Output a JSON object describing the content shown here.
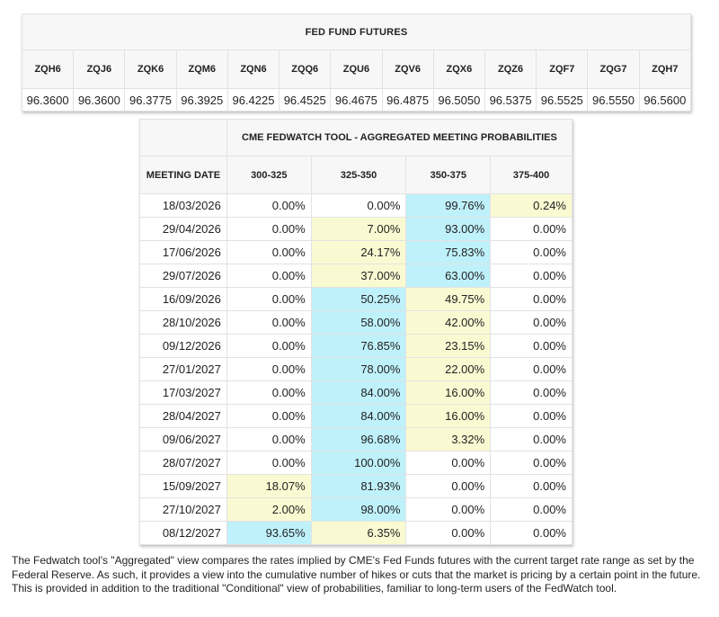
{
  "futures": {
    "title": "FED FUND FUTURES",
    "contracts": [
      "ZQH6",
      "ZQJ6",
      "ZQK6",
      "ZQM6",
      "ZQN6",
      "ZQQ6",
      "ZQU6",
      "ZQV6",
      "ZQX6",
      "ZQZ6",
      "ZQF7",
      "ZQG7",
      "ZQH7"
    ],
    "prices": [
      "96.3600",
      "96.3600",
      "96.3775",
      "96.3925",
      "96.4225",
      "96.4525",
      "96.4675",
      "96.4875",
      "96.5050",
      "96.5375",
      "96.5525",
      "96.5550",
      "96.5600"
    ]
  },
  "fedwatch": {
    "title": "CME FEDWATCH TOOL - AGGREGATED MEETING PROBABILITIES",
    "date_header": "MEETING DATE",
    "ranges": [
      "300-325",
      "325-350",
      "350-375",
      "375-400"
    ],
    "colors": {
      "highest": "#bff1fb",
      "second": "#fafad2"
    },
    "rows": [
      {
        "date": "18/03/2026",
        "values": [
          "0.00%",
          "0.00%",
          "99.76%",
          "0.24%"
        ],
        "shade": [
          "",
          "",
          "hi",
          "mid"
        ]
      },
      {
        "date": "29/04/2026",
        "values": [
          "0.00%",
          "7.00%",
          "93.00%",
          "0.00%"
        ],
        "shade": [
          "",
          "mid",
          "hi",
          ""
        ]
      },
      {
        "date": "17/06/2026",
        "values": [
          "0.00%",
          "24.17%",
          "75.83%",
          "0.00%"
        ],
        "shade": [
          "",
          "mid",
          "hi",
          ""
        ]
      },
      {
        "date": "29/07/2026",
        "values": [
          "0.00%",
          "37.00%",
          "63.00%",
          "0.00%"
        ],
        "shade": [
          "",
          "mid",
          "hi",
          ""
        ]
      },
      {
        "date": "16/09/2026",
        "values": [
          "0.00%",
          "50.25%",
          "49.75%",
          "0.00%"
        ],
        "shade": [
          "",
          "hi",
          "mid",
          ""
        ]
      },
      {
        "date": "28/10/2026",
        "values": [
          "0.00%",
          "58.00%",
          "42.00%",
          "0.00%"
        ],
        "shade": [
          "",
          "hi",
          "mid",
          ""
        ]
      },
      {
        "date": "09/12/2026",
        "values": [
          "0.00%",
          "76.85%",
          "23.15%",
          "0.00%"
        ],
        "shade": [
          "",
          "hi",
          "mid",
          ""
        ]
      },
      {
        "date": "27/01/2027",
        "values": [
          "0.00%",
          "78.00%",
          "22.00%",
          "0.00%"
        ],
        "shade": [
          "",
          "hi",
          "mid",
          ""
        ]
      },
      {
        "date": "17/03/2027",
        "values": [
          "0.00%",
          "84.00%",
          "16.00%",
          "0.00%"
        ],
        "shade": [
          "",
          "hi",
          "mid",
          ""
        ]
      },
      {
        "date": "28/04/2027",
        "values": [
          "0.00%",
          "84.00%",
          "16.00%",
          "0.00%"
        ],
        "shade": [
          "",
          "hi",
          "mid",
          ""
        ]
      },
      {
        "date": "09/06/2027",
        "values": [
          "0.00%",
          "96.68%",
          "3.32%",
          "0.00%"
        ],
        "shade": [
          "",
          "hi",
          "mid",
          ""
        ]
      },
      {
        "date": "28/07/2027",
        "values": [
          "0.00%",
          "100.00%",
          "0.00%",
          "0.00%"
        ],
        "shade": [
          "",
          "hi",
          "",
          ""
        ]
      },
      {
        "date": "15/09/2027",
        "values": [
          "18.07%",
          "81.93%",
          "0.00%",
          "0.00%"
        ],
        "shade": [
          "mid",
          "hi",
          "",
          ""
        ]
      },
      {
        "date": "27/10/2027",
        "values": [
          "2.00%",
          "98.00%",
          "0.00%",
          "0.00%"
        ],
        "shade": [
          "mid",
          "hi",
          "",
          ""
        ]
      },
      {
        "date": "08/12/2027",
        "values": [
          "93.65%",
          "6.35%",
          "0.00%",
          "0.00%"
        ],
        "shade": [
          "hi",
          "mid",
          "",
          ""
        ]
      }
    ]
  },
  "footnote": "The Fedwatch tool's \"Aggregated\" view compares the rates implied by CME's Fed Funds futures with the current target rate range as set by the Federal Reserve. As such, it provides a view into the cumulative number of hikes or cuts that the market is pricing by a certain point in the future. This is provided in addition to the traditional \"Conditional\" view of probabilities, familiar to long-term users of the FedWatch tool."
}
